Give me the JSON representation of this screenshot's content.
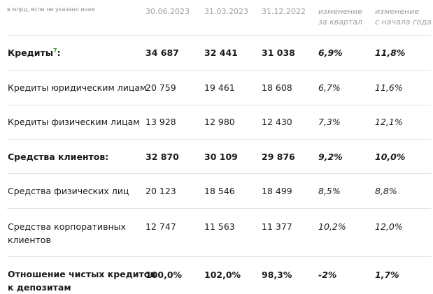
{
  "header": {
    "units_note": "в млрд, если не указано иное",
    "col_1": "30.06.2023",
    "col_2": "31.03.2023",
    "col_3": "31.12.2022",
    "col_4_line1": "изменение",
    "col_4_line2": "за квартал",
    "col_5_line1": "изменение",
    "col_5_line2": "с начала года"
  },
  "rows": [
    {
      "label": "Кредиты",
      "footnote": "7",
      "label_suffix": ":",
      "v1": "34 687",
      "v2": "32 441",
      "v3": "31 038",
      "q": "6,9%",
      "y": "11,8%"
    },
    {
      "label": "Кредиты юридическим лицам",
      "v1": "20 759",
      "v2": "19 461",
      "v3": "18 608",
      "q": "6,7%",
      "y": "11,6%"
    },
    {
      "label": "Кредиты физическим лицам",
      "v1": "13 928",
      "v2": "12 980",
      "v3": "12 430",
      "q": "7,3%",
      "y": "12,1%"
    },
    {
      "label": "Средства клиентов:",
      "v1": "32 870",
      "v2": "30 109",
      "v3": "29 876",
      "q": "9,2%",
      "y": "10,0%"
    },
    {
      "label": "Средства физических лиц",
      "v1": "20 123",
      "v2": "18 546",
      "v3": "18 499",
      "q": "8,5%",
      "y": "8,8%"
    },
    {
      "label_line1": "Средства корпоративных",
      "label_line2": "клиентов",
      "v1": "12 747",
      "v2": "11 563",
      "v3": "11 377",
      "q": "10,2%",
      "y": "12,0%"
    },
    {
      "label_line1": "Отношение чистых кредитов",
      "label_line2": "к депозитам",
      "v1": "100,0%",
      "v2": "102,0%",
      "v3": "98,3%",
      "q": "-2%",
      "y": "1,7%"
    }
  ]
}
